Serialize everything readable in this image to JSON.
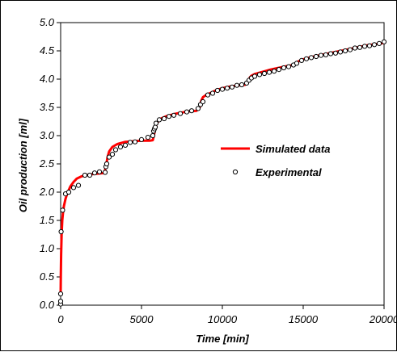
{
  "chart_data": {
    "type": "line",
    "xlabel": "Time [min]",
    "ylabel": "Oil production [ml]",
    "xlim": [
      0,
      20000
    ],
    "ylim": [
      0,
      5.0
    ],
    "x_ticks": [
      "0",
      "5000",
      "10000",
      "15000",
      "20000"
    ],
    "y_ticks": [
      "0.0",
      "0.5",
      "1.0",
      "1.5",
      "2.0",
      "2.5",
      "3.0",
      "3.5",
      "4.0",
      "4.5",
      "5.0"
    ],
    "grid": false,
    "legend_position": "right",
    "series": [
      {
        "name": "Simulated data",
        "style": "line",
        "color": "#ff0000",
        "x": [
          0,
          10,
          30,
          60,
          100,
          150,
          200,
          300,
          400,
          600,
          800,
          1000,
          1300,
          1600,
          2000,
          2400,
          2700,
          2800,
          2900,
          3000,
          3200,
          3500,
          4000,
          4500,
          5000,
          5500,
          5700,
          5800,
          5900,
          6000,
          6200,
          6500,
          7000,
          7500,
          8000,
          8400,
          8600,
          8700,
          8800,
          9000,
          9300,
          9600,
          10000,
          10500,
          11000,
          11400,
          11600,
          11700,
          11800,
          12000,
          12500,
          13000,
          13500,
          14000,
          14400,
          14600,
          15000,
          15500,
          16000,
          16500,
          17000,
          17500,
          18000,
          18500,
          19000,
          19500,
          20000
        ],
        "y": [
          0.2,
          0.5,
          0.9,
          1.25,
          1.5,
          1.65,
          1.75,
          1.88,
          1.97,
          2.1,
          2.18,
          2.24,
          2.28,
          2.3,
          2.32,
          2.33,
          2.34,
          2.45,
          2.62,
          2.72,
          2.8,
          2.85,
          2.89,
          2.9,
          2.91,
          2.91,
          2.92,
          3.05,
          3.18,
          3.24,
          3.3,
          3.34,
          3.38,
          3.41,
          3.43,
          3.44,
          3.5,
          3.62,
          3.68,
          3.72,
          3.76,
          3.8,
          3.84,
          3.87,
          3.89,
          3.9,
          3.96,
          4.03,
          4.06,
          4.09,
          4.13,
          4.17,
          4.2,
          4.23,
          4.25,
          4.3,
          4.35,
          4.39,
          4.42,
          4.45,
          4.48,
          4.51,
          4.54,
          4.57,
          4.6,
          4.62,
          4.64
        ]
      },
      {
        "name": "Experimental",
        "style": "marker",
        "color": "#000000",
        "x": [
          0,
          0,
          0,
          30,
          120,
          300,
          500,
          800,
          1100,
          1500,
          1800,
          2100,
          2400,
          2750,
          2800,
          2850,
          3000,
          3200,
          3400,
          3700,
          4000,
          4300,
          4600,
          5000,
          5400,
          5700,
          5750,
          5800,
          5850,
          5900,
          6100,
          6400,
          6700,
          7000,
          7400,
          7800,
          8100,
          8500,
          8650,
          8800,
          9100,
          9400,
          9700,
          10000,
          10300,
          10600,
          10900,
          11200,
          11500,
          11650,
          11800,
          12000,
          12300,
          12600,
          12900,
          13200,
          13500,
          13800,
          14100,
          14400,
          14600,
          14900,
          15200,
          15500,
          15800,
          16100,
          16400,
          16700,
          17000,
          17300,
          17600,
          17900,
          18200,
          18500,
          18800,
          19100,
          19400,
          19700,
          20000
        ],
        "y": [
          0.02,
          0.07,
          0.2,
          1.3,
          1.68,
          1.97,
          2.0,
          2.08,
          2.12,
          2.3,
          2.3,
          2.34,
          2.36,
          2.35,
          2.45,
          2.5,
          2.62,
          2.67,
          2.75,
          2.8,
          2.83,
          2.88,
          2.89,
          2.93,
          2.97,
          3.0,
          3.08,
          3.12,
          3.15,
          3.22,
          3.28,
          3.3,
          3.34,
          3.36,
          3.39,
          3.42,
          3.44,
          3.48,
          3.55,
          3.6,
          3.72,
          3.75,
          3.8,
          3.82,
          3.84,
          3.86,
          3.89,
          3.9,
          3.93,
          3.98,
          4.02,
          4.05,
          4.08,
          4.1,
          4.12,
          4.14,
          4.17,
          4.2,
          4.22,
          4.25,
          4.28,
          4.33,
          4.36,
          4.38,
          4.4,
          4.42,
          4.43,
          4.45,
          4.46,
          4.48,
          4.5,
          4.52,
          4.55,
          4.56,
          4.58,
          4.59,
          4.61,
          4.63,
          4.66
        ]
      }
    ]
  }
}
